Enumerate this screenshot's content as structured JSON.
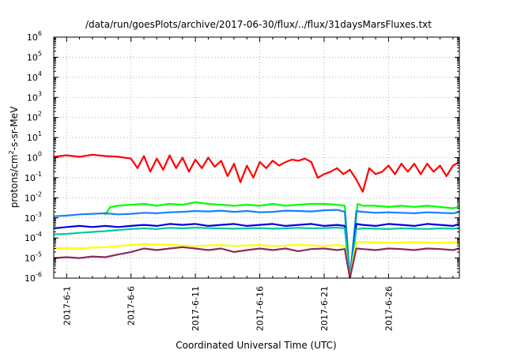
{
  "chart_data": {
    "type": "line",
    "title": "/data/run/goesPlots/archive/2017-06-30/flux/../flux/31daysMarsFluxes.txt",
    "xlabel": "Coordinated Universal Time (UTC)",
    "ylabel": "protons/cm2-s-sr-MeV",
    "ylabel_parts": [
      "protons/cm",
      "2",
      "-s-sr-MeV"
    ],
    "yscale": "log",
    "ylim_exponent": [
      -6,
      6
    ],
    "y_tick_base": "10",
    "y_tick_exponents": [
      "-6",
      "-5",
      "-4",
      "-3",
      "-2",
      "-1",
      "0",
      "1",
      "2",
      "3",
      "4",
      "5",
      "6"
    ],
    "xlim_days": [
      0,
      31.5
    ],
    "x_tick_labels": [
      "2017-6-1",
      "2017-6-6",
      "2017-6-11",
      "2017-6-16",
      "2017-6-21",
      "2017-6-26"
    ],
    "x_tick_days": [
      1,
      6,
      11,
      16,
      21,
      26
    ],
    "grid": true,
    "legend": "none",
    "series": [
      {
        "color": "#ff0000",
        "x": [
          0,
          1,
          2,
          3,
          4,
          5,
          6,
          6.5,
          7,
          7.5,
          8,
          8.5,
          9,
          9.5,
          10,
          10.5,
          11,
          11.5,
          12,
          12.5,
          13,
          13.5,
          14,
          14.5,
          15,
          15.5,
          16,
          16.5,
          17,
          17.5,
          18,
          18.5,
          19,
          19.5,
          20,
          20.5,
          21,
          21.5,
          22,
          22.5,
          23,
          23.5,
          24,
          24.5,
          25,
          25.5,
          26,
          26.5,
          27,
          27.5,
          28,
          28.5,
          29,
          29.5,
          30,
          30.5,
          31,
          31.5
        ],
        "y": [
          1.1,
          1.3,
          1.1,
          1.4,
          1.2,
          1.1,
          0.9,
          0.3,
          1.2,
          0.2,
          0.9,
          0.25,
          1.3,
          0.3,
          1.0,
          0.2,
          0.8,
          0.3,
          1.0,
          0.35,
          0.7,
          0.12,
          0.5,
          0.06,
          0.4,
          0.1,
          0.6,
          0.3,
          0.7,
          0.4,
          0.6,
          0.8,
          0.7,
          0.9,
          0.6,
          0.1,
          0.15,
          0.2,
          0.3,
          0.15,
          0.25,
          0.08,
          0.02,
          0.3,
          0.15,
          0.2,
          0.4,
          0.15,
          0.5,
          0.2,
          0.5,
          0.15,
          0.5,
          0.2,
          0.4,
          0.12,
          0.4,
          0.6
        ]
      },
      {
        "color": "#00ff00",
        "x": [
          4,
          4.4,
          5,
          6,
          7,
          8,
          9,
          10,
          11,
          12,
          13,
          14,
          15,
          16,
          17,
          18,
          19,
          20,
          21,
          22,
          22.6,
          23,
          23.6,
          24,
          25,
          26,
          27,
          28,
          29,
          30,
          31,
          31.5
        ],
        "y": [
          0.0015,
          0.0035,
          0.004,
          0.0045,
          0.005,
          0.004,
          0.005,
          0.0045,
          0.006,
          0.005,
          0.0045,
          0.004,
          0.0045,
          0.004,
          0.005,
          0.004,
          0.0045,
          0.005,
          0.005,
          0.0045,
          0.004,
          1e-06,
          0.005,
          0.004,
          0.004,
          0.0035,
          0.004,
          0.0035,
          0.004,
          0.0035,
          0.003,
          0.0035
        ]
      },
      {
        "color": "#1a7fff",
        "x": [
          0,
          1,
          2,
          3,
          4,
          5,
          6,
          7,
          8,
          9,
          10,
          11,
          12,
          13,
          14,
          15,
          16,
          17,
          18,
          19,
          20,
          21,
          22,
          22.6,
          23,
          23.5,
          24,
          25,
          26,
          27,
          28,
          29,
          30,
          31,
          31.5
        ],
        "y": [
          0.0012,
          0.0013,
          0.0015,
          0.0016,
          0.0017,
          0.0015,
          0.0016,
          0.0018,
          0.0017,
          0.0019,
          0.002,
          0.0022,
          0.0021,
          0.0023,
          0.002,
          0.0022,
          0.0019,
          0.002,
          0.0023,
          0.0022,
          0.0021,
          0.0024,
          0.0025,
          0.002,
          1e-06,
          0.0022,
          0.002,
          0.0018,
          0.0019,
          0.0018,
          0.0017,
          0.0019,
          0.0018,
          0.0017,
          0.002
        ]
      },
      {
        "color": "#0000e0",
        "x": [
          0,
          1,
          2,
          3,
          4,
          5,
          6,
          7,
          8,
          9,
          10,
          11,
          12,
          13,
          14,
          15,
          16,
          17,
          18,
          19,
          20,
          21,
          22,
          22.6,
          23,
          23.5,
          24,
          25,
          26,
          27,
          28,
          29,
          30,
          31,
          31.5
        ],
        "y": [
          0.0003,
          0.00035,
          0.0004,
          0.00035,
          0.0004,
          0.00035,
          0.0004,
          0.00045,
          0.0004,
          0.0005,
          0.00045,
          0.0005,
          0.0004,
          0.00045,
          0.0005,
          0.0004,
          0.00045,
          0.0005,
          0.0004,
          0.00045,
          0.0005,
          0.0004,
          0.00045,
          0.0004,
          1e-06,
          0.0005,
          0.00045,
          0.0004,
          0.0005,
          0.00045,
          0.0004,
          0.0005,
          0.00045,
          0.0004,
          0.0005
        ]
      },
      {
        "color": "#00c8a0",
        "x": [
          0,
          1,
          2,
          3,
          4,
          5,
          6,
          7,
          8,
          9,
          10,
          11,
          12,
          13,
          14,
          15,
          16,
          17,
          18,
          19,
          20,
          21,
          22,
          22.6,
          23,
          23.5,
          24,
          25,
          26,
          27,
          28,
          29,
          30,
          31,
          31.5
        ],
        "y": [
          0.00015,
          0.00016,
          0.00018,
          0.0002,
          0.00022,
          0.00025,
          0.00028,
          0.0003,
          0.00028,
          0.00032,
          0.0003,
          0.00033,
          0.00031,
          0.0003,
          0.00029,
          0.0003,
          0.00031,
          0.00029,
          0.0003,
          0.00032,
          0.0003,
          0.00031,
          0.00033,
          0.0003,
          1e-06,
          0.00028,
          0.0003,
          0.00029,
          0.00028,
          0.0003,
          0.00029,
          0.00028,
          0.0003,
          0.00029,
          0.0003
        ]
      },
      {
        "color": "#ffff00",
        "x": [
          0,
          1,
          2,
          3,
          4,
          5,
          6,
          7,
          8,
          9,
          10,
          11,
          12,
          13,
          14,
          15,
          16,
          17,
          18,
          19,
          20,
          21,
          22,
          22.6,
          23,
          23.5,
          24,
          25,
          26,
          27,
          28,
          29,
          30,
          31,
          31.5
        ],
        "y": [
          3e-05,
          3.2e-05,
          3e-05,
          3.3e-05,
          3.5e-05,
          4e-05,
          4.5e-05,
          5e-05,
          4.8e-05,
          4.5e-05,
          4.2e-05,
          4e-05,
          4.2e-05,
          4.5e-05,
          4e-05,
          4.3e-05,
          4.5e-05,
          4e-05,
          4.2e-05,
          4.5e-05,
          4.3e-05,
          4e-05,
          4.5e-05,
          4e-05,
          1e-06,
          6e-05,
          6.5e-05,
          6e-05,
          5.8e-05,
          6e-05,
          6.2e-05,
          6e-05,
          5.8e-05,
          6e-05,
          6e-05
        ]
      },
      {
        "color": "#8b2a5c",
        "x": [
          0,
          1,
          2,
          3,
          4,
          5,
          6,
          7,
          8,
          9,
          10,
          11,
          12,
          13,
          14,
          15,
          16,
          17,
          18,
          19,
          20,
          21,
          22,
          22.6,
          23,
          23.5,
          24,
          25,
          26,
          27,
          28,
          29,
          30,
          31,
          31.5
        ],
        "y": [
          1e-05,
          1.1e-05,
          1e-05,
          1.2e-05,
          1.1e-05,
          1.5e-05,
          2e-05,
          3e-05,
          2.5e-05,
          3e-05,
          3.5e-05,
          3e-05,
          2.5e-05,
          3e-05,
          2e-05,
          2.5e-05,
          3e-05,
          2.5e-05,
          3e-05,
          2.2e-05,
          2.8e-05,
          3e-05,
          2.5e-05,
          2.8e-05,
          1e-06,
          3e-05,
          2.8e-05,
          2.5e-05,
          3e-05,
          2.8e-05,
          2.5e-05,
          3e-05,
          2.8e-05,
          2.5e-05,
          3e-05
        ]
      }
    ]
  }
}
